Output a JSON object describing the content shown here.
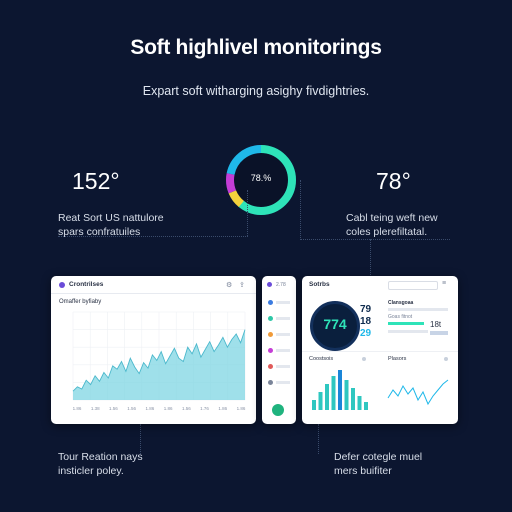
{
  "header": {
    "title": "Soft highlivel monitorings",
    "subtitle": "Expart soft witharging asighy fivdightries."
  },
  "left_stat": {
    "value": "152°",
    "caption_line1": "Reat Sort US nattulore",
    "caption_line2": "spars confratuiles"
  },
  "right_stat": {
    "value": "78°",
    "caption_line1": "Cabl teing weft new",
    "caption_line2": "coles plerefiltatal."
  },
  "gauge": {
    "label": "78.%",
    "percent": 78,
    "colors": [
      "#2ee3b8",
      "#f4d23c",
      "#c43dd6",
      "#1fb8e9"
    ]
  },
  "bottom_left_caption": {
    "line1": "Tour Reation nays",
    "line2": "insticler poley."
  },
  "bottom_right_caption": {
    "line1": "Defer cotegle muel",
    "line2": "mers buifiter"
  },
  "card_left": {
    "app_name": "Crontrilses",
    "chart_title": "Omaffer byfiaby",
    "y_ticks": [
      "",
      "",
      "",
      "",
      "",
      ""
    ],
    "x_ticks": [
      "1.86",
      "1.38",
      "1.56",
      "1.56",
      "1.86",
      "1.86",
      "1.56",
      "1.76",
      "1.86",
      "1.86"
    ]
  },
  "card_mid": {
    "header": "2.78"
  },
  "card_right": {
    "title": "Sotrbs",
    "search_placeholder": "",
    "big_value": "774",
    "mini_values": [
      "79",
      "18",
      "29"
    ],
    "row_labels": [
      "Clansgoaa",
      "Goas fitnot"
    ],
    "right_num": "18t",
    "bars_title": "Coostsois",
    "line_title": "Plasors"
  },
  "chart_data": {
    "type": "area",
    "x": [
      0,
      1,
      2,
      3,
      4,
      5,
      6,
      7,
      8,
      9,
      10,
      11,
      12,
      13,
      14,
      15,
      16,
      17,
      18,
      19,
      20,
      21,
      22,
      23,
      24,
      25,
      26,
      27,
      28,
      29,
      30,
      31,
      32,
      33,
      34,
      35,
      36,
      37,
      38,
      39
    ],
    "series": [
      {
        "values": [
          8,
          12,
          10,
          18,
          14,
          22,
          17,
          25,
          20,
          31,
          28,
          35,
          26,
          38,
          30,
          24,
          34,
          29,
          41,
          36,
          44,
          33,
          40,
          47,
          38,
          35,
          48,
          42,
          51,
          39,
          46,
          53,
          44,
          50,
          57,
          48,
          55,
          60,
          52,
          64
        ]
      }
    ],
    "ylim": [
      0,
      80
    ],
    "grid": true,
    "color": "#7fd6e3"
  },
  "colors": {
    "background": "#0c1630",
    "accent_teal": "#2ee3b8",
    "accent_cyan": "#1fb8e9",
    "accent_purple": "#c43dd6",
    "accent_yellow": "#f4d23c"
  }
}
